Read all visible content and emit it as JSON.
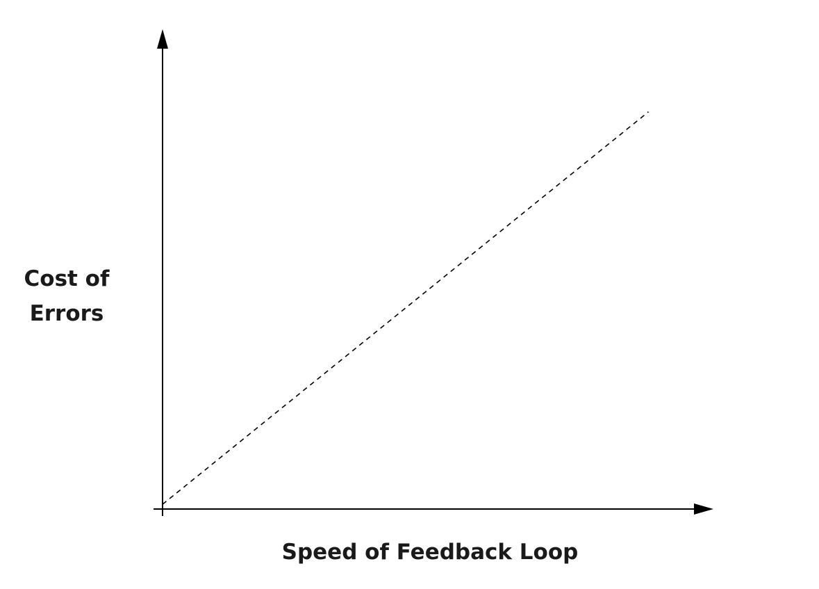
{
  "chart_data": {
    "type": "line",
    "title": "",
    "xlabel": "Speed of Feedback Loop",
    "ylabel_lines": [
      "Cost of",
      "Errors"
    ],
    "xlim": [
      0,
      1
    ],
    "ylim": [
      0,
      1
    ],
    "grid": false,
    "legend": "none",
    "series": [
      {
        "style": "dashed",
        "color": "#000000",
        "x": [
          0,
          0.89
        ],
        "y": [
          0.01,
          0.84
        ]
      }
    ]
  }
}
